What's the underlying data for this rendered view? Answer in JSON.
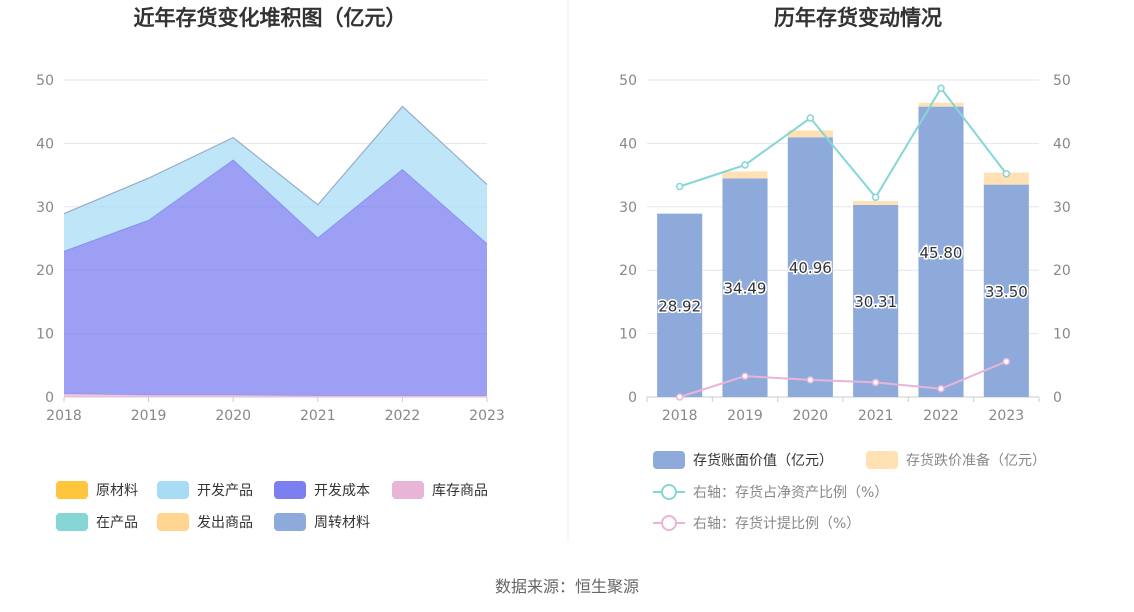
{
  "source_text": "数据来源：恒生聚源",
  "chart_data": [
    {
      "type": "area",
      "stacked": true,
      "title": "近年存货变化堆积图（亿元）",
      "categories": [
        "2018",
        "2019",
        "2020",
        "2021",
        "2022",
        "2023"
      ],
      "y_ticks": [
        "0",
        "10",
        "20",
        "30",
        "40",
        "50"
      ],
      "ylim": [
        0,
        50
      ],
      "grid": true,
      "legend_position": "bottom",
      "series": [
        {
          "name": "库存商品",
          "color": "#e8b4d8",
          "values": [
            0.5,
            0.3,
            0.3,
            0.2,
            0.2,
            0.2
          ]
        },
        {
          "name": "开发成本",
          "color": "#7b7ff0",
          "values": [
            22.5,
            27.6,
            37.1,
            24.9,
            35.7,
            24.0
          ]
        },
        {
          "name": "开发产品",
          "color": "#a8dcf5",
          "values": [
            5.9,
            6.6,
            3.5,
            5.2,
            9.9,
            9.3
          ]
        },
        {
          "name": "原材料",
          "color": "#ffc53d",
          "values": [
            0.02,
            0.02,
            0.02,
            0.02,
            0.02,
            0.02
          ]
        },
        {
          "name": "在产品",
          "color": "#86d6d6",
          "values": [
            0,
            0,
            0,
            0,
            0,
            0
          ]
        },
        {
          "name": "发出商品",
          "color": "#ffd591",
          "values": [
            0,
            0,
            0,
            0,
            0,
            0
          ]
        },
        {
          "name": "周转材料",
          "color": "#8eaadb",
          "values": [
            0,
            0,
            0,
            0,
            0,
            0
          ]
        }
      ],
      "legend_order": [
        "原材料",
        "开发产品",
        "开发成本",
        "库存商品",
        "在产品",
        "发出商品",
        "周转材料"
      ]
    },
    {
      "type": "bar",
      "stacked": true,
      "title": "历年存货变动情况",
      "categories": [
        "2018",
        "2019",
        "2020",
        "2021",
        "2022",
        "2023"
      ],
      "y_ticks": [
        "0",
        "10",
        "20",
        "30",
        "40",
        "50"
      ],
      "y2_ticks": [
        "0",
        "10",
        "20",
        "30",
        "40",
        "50"
      ],
      "ylim": [
        0,
        50
      ],
      "y2lim": [
        0,
        50
      ],
      "grid": true,
      "legend_position": "bottom",
      "series": [
        {
          "name": "存货账面价值（亿元）",
          "type": "bar",
          "color": "#8eaadb",
          "values": [
            28.92,
            34.49,
            40.96,
            30.31,
            45.8,
            33.5
          ],
          "labels": [
            "28.92",
            "34.49",
            "40.96",
            "30.31",
            "45.80",
            "33.50"
          ]
        },
        {
          "name": "存货跌价准备（亿元）",
          "type": "bar",
          "color": "#ffe1b3",
          "values": [
            0,
            1.1,
            1.1,
            0.6,
            0.6,
            1.9
          ]
        },
        {
          "name": "右轴：存货占净资产比例（%）",
          "type": "line",
          "axis": "right",
          "color": "#86d6d6",
          "values": [
            33.2,
            36.6,
            44.0,
            31.5,
            48.7,
            35.2
          ]
        },
        {
          "name": "右轴：存货计提比例（%）",
          "type": "line",
          "axis": "right",
          "color": "#e8b4d8",
          "values": [
            0.0,
            3.3,
            2.7,
            2.3,
            1.3,
            5.6
          ]
        }
      ]
    }
  ]
}
